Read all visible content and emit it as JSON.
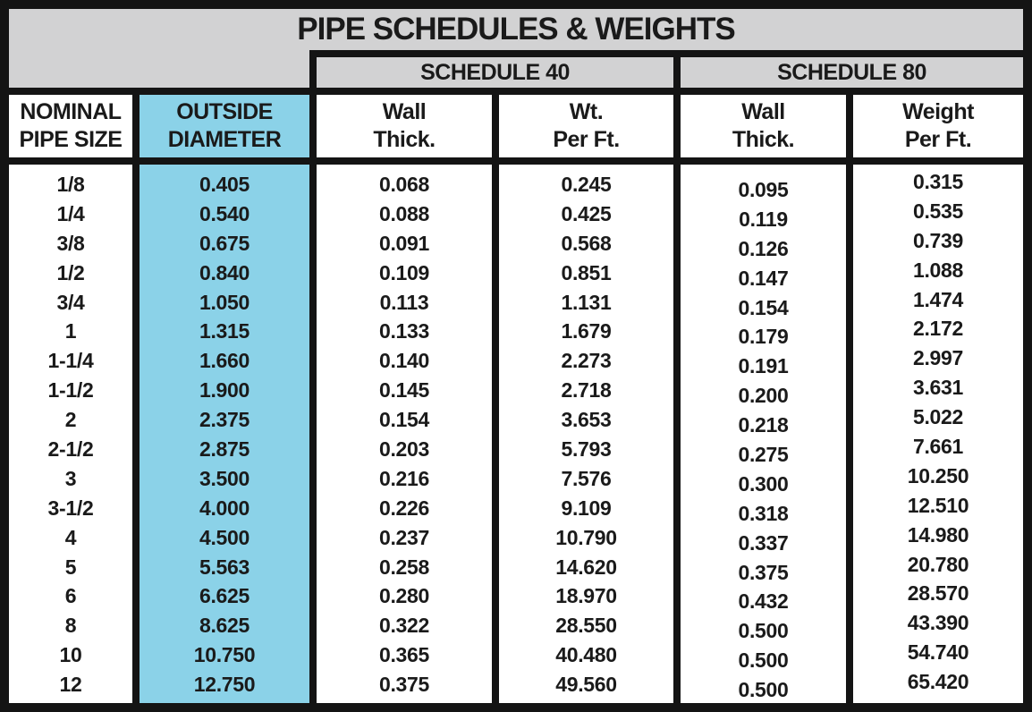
{
  "chart_data": {
    "type": "table",
    "title": "PIPE SCHEDULES & WEIGHTS",
    "group_headers": [
      "SCHEDULE 40",
      "SCHEDULE 80"
    ],
    "column_groups": [
      {
        "label": "SCHEDULE 40",
        "columns": [
          2,
          3
        ]
      },
      {
        "label": "SCHEDULE 80",
        "columns": [
          4,
          5
        ]
      }
    ],
    "columns": [
      "NOMINAL\nPIPE SIZE",
      "OUTSIDE\nDIAMETER",
      "Wall\nThick.",
      "Wt.\nPer Ft.",
      "Wall\nThick.",
      "Weight\nPer Ft."
    ],
    "highlighted_column": "OUTSIDE DIAMETER",
    "rows": [
      [
        "1/8",
        "0.405",
        "0.068",
        "0.245",
        "0.095",
        "0.315"
      ],
      [
        "1/4",
        "0.540",
        "0.088",
        "0.425",
        "0.119",
        "0.535"
      ],
      [
        "3/8",
        "0.675",
        "0.091",
        "0.568",
        "0.126",
        "0.739"
      ],
      [
        "1/2",
        "0.840",
        "0.109",
        "0.851",
        "0.147",
        "1.088"
      ],
      [
        "3/4",
        "1.050",
        "0.113",
        "1.131",
        "0.154",
        "1.474"
      ],
      [
        "1",
        "1.315",
        "0.133",
        "1.679",
        "0.179",
        "2.172"
      ],
      [
        "1-1/4",
        "1.660",
        "0.140",
        "2.273",
        "0.191",
        "2.997"
      ],
      [
        "1-1/2",
        "1.900",
        "0.145",
        "2.718",
        "0.200",
        "3.631"
      ],
      [
        "2",
        "2.375",
        "0.154",
        "3.653",
        "0.218",
        "5.022"
      ],
      [
        "2-1/2",
        "2.875",
        "0.203",
        "5.793",
        "0.275",
        "7.661"
      ],
      [
        "3",
        "3.500",
        "0.216",
        "7.576",
        "0.300",
        "10.250"
      ],
      [
        "3-1/2",
        "4.000",
        "0.226",
        "9.109",
        "0.318",
        "12.510"
      ],
      [
        "4",
        "4.500",
        "0.237",
        "10.790",
        "0.337",
        "14.980"
      ],
      [
        "5",
        "5.563",
        "0.258",
        "14.620",
        "0.375",
        "20.780"
      ],
      [
        "6",
        "6.625",
        "0.280",
        "18.970",
        "0.432",
        "28.570"
      ],
      [
        "8",
        "8.625",
        "0.322",
        "28.550",
        "0.500",
        "43.390"
      ],
      [
        "10",
        "10.750",
        "0.365",
        "40.480",
        "0.500",
        "54.740"
      ],
      [
        "12",
        "12.750",
        "0.375",
        "49.560",
        "0.500",
        "65.420"
      ]
    ]
  },
  "colors": {
    "header_gray": "#D2D2D3",
    "highlight_cyan": "#8BD2E8",
    "border_black": "#141414",
    "text_black": "#1a1a1a"
  }
}
